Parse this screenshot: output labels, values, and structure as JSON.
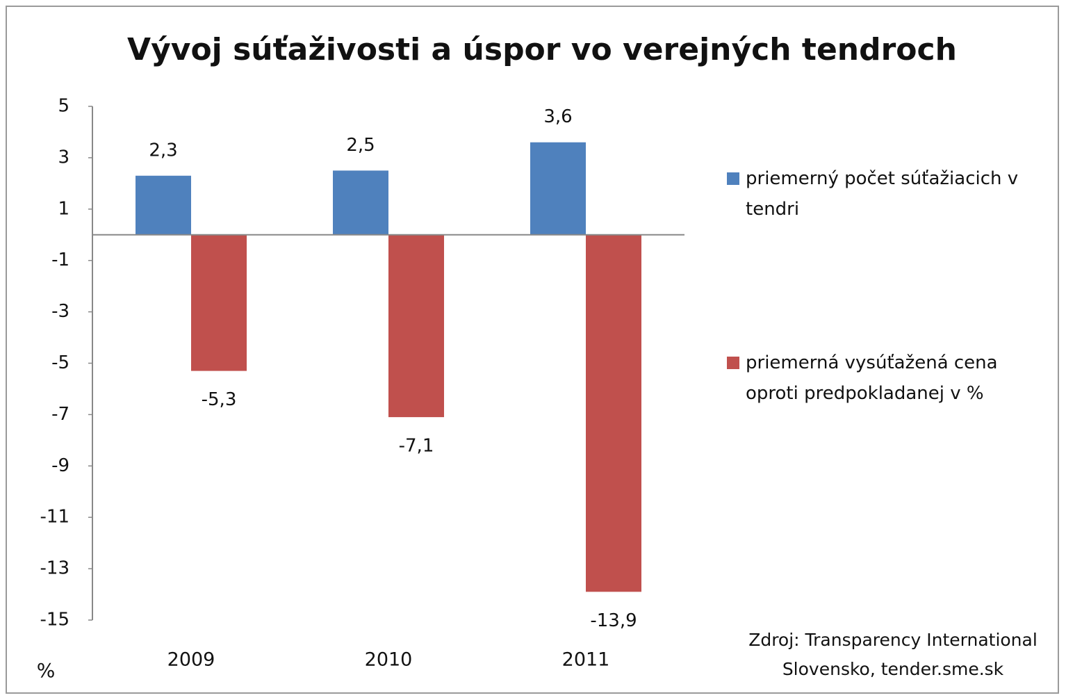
{
  "chart_data": {
    "type": "bar",
    "title": "Vývoj súťaživosti  a úspor vo verejných tendroch",
    "y_label": "%",
    "categories": [
      "2009",
      "2010",
      "2011"
    ],
    "series": [
      {
        "name": "priemerný počet súťažiacich v tendri",
        "color": "#4f81bd",
        "values": [
          2.3,
          2.5,
          3.6
        ],
        "value_labels": [
          "2,3",
          "2,5",
          "3,6"
        ]
      },
      {
        "name": "priemerná vysúťažená cena oproti predpokladanej v %",
        "color": "#c0504d",
        "values": [
          -5.3,
          -7.1,
          -13.9
        ],
        "value_labels": [
          "-5,3",
          "-7,1",
          "-13,9"
        ]
      }
    ],
    "ylim": [
      -15,
      5
    ],
    "yticks": [
      5,
      3,
      1,
      -1,
      -3,
      -5,
      -7,
      -9,
      -11,
      -13,
      -15
    ],
    "legend": "right",
    "source": "Zdroj: Transparency International Slovensko, tender.sme.sk"
  }
}
